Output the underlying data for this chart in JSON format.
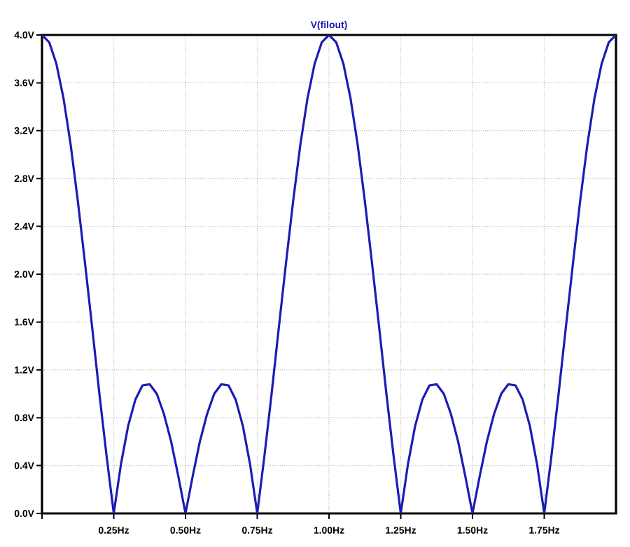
{
  "chart_data": {
    "type": "line",
    "title": "V(filout)",
    "x": [
      0,
      0.025,
      0.05,
      0.075,
      0.1,
      0.125,
      0.15,
      0.175,
      0.2,
      0.225,
      0.25,
      0.275,
      0.3,
      0.325,
      0.35,
      0.375,
      0.4,
      0.425,
      0.45,
      0.475,
      0.5,
      0.525,
      0.55,
      0.575,
      0.6,
      0.625,
      0.65,
      0.675,
      0.7,
      0.725,
      0.75,
      0.775,
      0.8,
      0.825,
      0.85,
      0.875,
      0.9,
      0.925,
      0.95,
      0.975,
      1,
      1.025,
      1.05,
      1.075,
      1.1,
      1.125,
      1.15,
      1.175,
      1.2,
      1.225,
      1.25,
      1.275,
      1.3,
      1.325,
      1.35,
      1.375,
      1.4,
      1.425,
      1.45,
      1.475,
      1.5,
      1.525,
      1.55,
      1.575,
      1.6,
      1.625,
      1.65,
      1.675,
      1.7,
      1.725,
      1.75,
      1.775,
      1.8,
      1.825,
      1.85,
      1.875,
      1.9,
      1.925,
      1.95,
      1.975,
      2
    ],
    "series": [
      {
        "color": "#1c1cb4",
        "values": [
          4,
          3.94,
          3.76,
          3.47,
          3.08,
          2.61,
          2.09,
          1.55,
          1.0,
          0.48,
          0,
          0.41,
          0.73,
          0.95,
          1.07,
          1.08,
          1.0,
          0.83,
          0.6,
          0.31,
          0,
          0.31,
          0.6,
          0.83,
          1.0,
          1.08,
          1.07,
          0.95,
          0.73,
          0.41,
          0,
          0.48,
          1.0,
          1.55,
          2.09,
          2.61,
          3.08,
          3.47,
          3.76,
          3.94,
          4,
          3.94,
          3.76,
          3.47,
          3.08,
          2.61,
          2.09,
          1.55,
          1.0,
          0.48,
          0,
          0.41,
          0.73,
          0.95,
          1.07,
          1.08,
          1.0,
          0.83,
          0.6,
          0.31,
          0,
          0.31,
          0.6,
          0.83,
          1.0,
          1.08,
          1.07,
          0.95,
          0.73,
          0.41,
          0,
          0.48,
          1.0,
          1.55,
          2.09,
          2.61,
          3.08,
          3.47,
          3.76,
          3.94,
          4
        ]
      }
    ],
    "xlim": [
      0,
      2
    ],
    "xticks": [
      {
        "value": 0,
        "label": null
      },
      {
        "value": 0.25,
        "label": "0.25Hz"
      },
      {
        "value": 0.5,
        "label": "0.50Hz"
      },
      {
        "value": 0.75,
        "label": "0.75Hz"
      },
      {
        "value": 1,
        "label": "1.00Hz"
      },
      {
        "value": 1.25,
        "label": "1.25Hz"
      },
      {
        "value": 1.5,
        "label": "1.50Hz"
      },
      {
        "value": 1.75,
        "label": "1.75Hz"
      }
    ],
    "ylim": [
      0,
      4
    ],
    "yticks": [
      {
        "value": 0,
        "label": "0.0V"
      },
      {
        "value": 0.4,
        "label": "0.4V"
      },
      {
        "value": 0.8,
        "label": "0.8V"
      },
      {
        "value": 1.2,
        "label": "1.2V"
      },
      {
        "value": 1.6,
        "label": "1.6V"
      },
      {
        "value": 2.0,
        "label": "2.0V"
      },
      {
        "value": 2.4,
        "label": "2.4V"
      },
      {
        "value": 2.8,
        "label": "2.8V"
      },
      {
        "value": 3.2,
        "label": "3.2V"
      },
      {
        "value": 3.6,
        "label": "3.6V"
      },
      {
        "value": 4.0,
        "label": "4.0V"
      }
    ],
    "grid": true,
    "marker": "none",
    "line_style": "solid"
  }
}
